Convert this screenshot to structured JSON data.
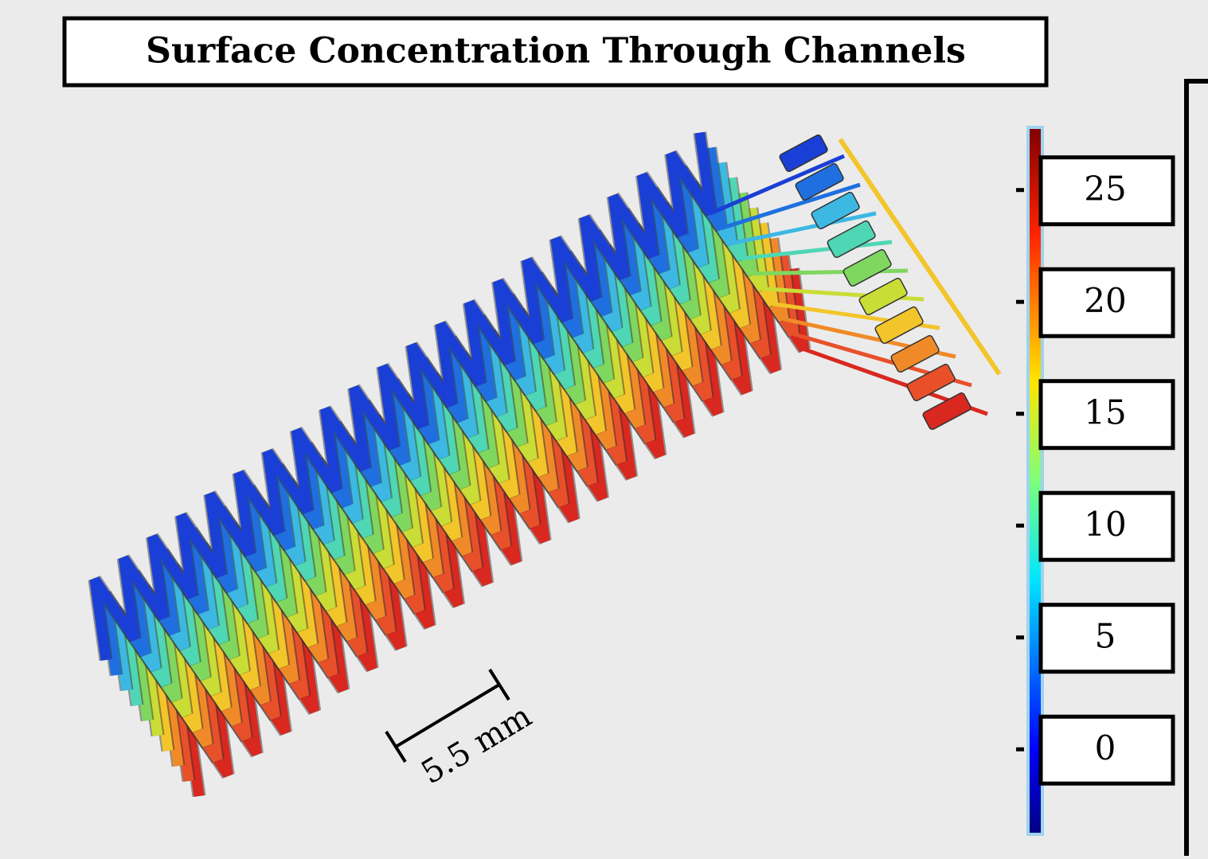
{
  "title": "Surface Concentration Through Channels",
  "colorbar": {
    "ticks": [
      0,
      5,
      10,
      15,
      20,
      25
    ],
    "lim": [
      -3.8,
      27.8
    ]
  },
  "scale_bar": {
    "label": "5.5 mm"
  }
}
